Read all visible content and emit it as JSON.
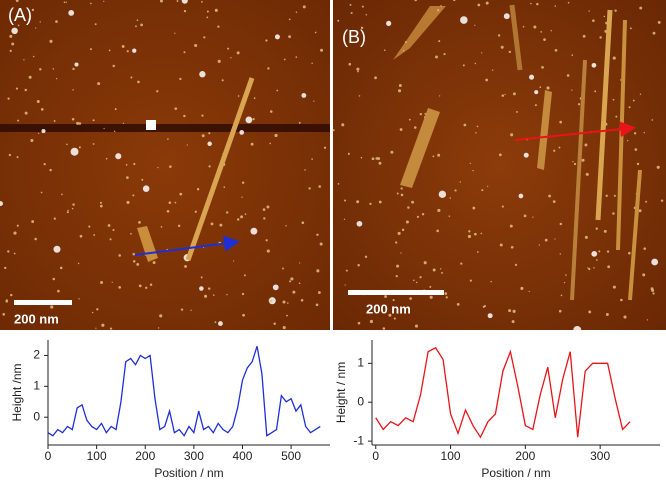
{
  "panels": [
    {
      "label": "(A)",
      "scale_bar": "200 nm"
    },
    {
      "label": "(B)",
      "scale_bar": "200 nm"
    }
  ],
  "chart_data": [
    {
      "type": "line",
      "xlabel": "Position / nm",
      "ylabel": "Height /nm",
      "x": [
        0,
        10,
        20,
        30,
        40,
        50,
        60,
        70,
        80,
        90,
        100,
        110,
        120,
        130,
        140,
        150,
        160,
        170,
        180,
        190,
        200,
        210,
        220,
        230,
        240,
        250,
        260,
        270,
        280,
        290,
        300,
        310,
        320,
        330,
        340,
        350,
        360,
        370,
        380,
        390,
        400,
        410,
        420,
        430,
        440,
        450,
        460,
        470,
        480,
        490,
        500,
        510,
        520,
        530,
        540,
        550,
        560
      ],
      "series": [
        {
          "name": "A",
          "color": "#1f2fd6",
          "values": [
            -0.5,
            -0.6,
            -0.4,
            -0.5,
            -0.3,
            -0.4,
            0.3,
            0.4,
            -0.1,
            -0.3,
            -0.4,
            -0.2,
            -0.5,
            -0.3,
            -0.4,
            0.5,
            1.8,
            1.9,
            1.7,
            2.0,
            1.9,
            2.0,
            0.6,
            -0.4,
            -0.3,
            0.2,
            -0.5,
            -0.4,
            -0.6,
            -0.3,
            -0.5,
            0.2,
            -0.4,
            -0.3,
            -0.5,
            -0.2,
            -0.4,
            -0.5,
            -0.3,
            0.3,
            1.2,
            1.6,
            1.8,
            2.3,
            1.4,
            -0.6,
            -0.5,
            -0.4,
            0.7,
            0.5,
            0.6,
            0.2,
            0.4,
            -0.3,
            -0.5,
            -0.4,
            -0.3
          ]
        }
      ],
      "xlim": [
        0,
        580
      ],
      "ylim": [
        -0.9,
        2.5
      ],
      "xticks": [
        0,
        100,
        200,
        300,
        400,
        500
      ],
      "yticks": [
        0,
        1,
        2
      ]
    },
    {
      "type": "line",
      "xlabel": "Position / nm",
      "ylabel": "Height / nm",
      "x": [
        0,
        10,
        20,
        30,
        40,
        50,
        60,
        70,
        80,
        90,
        100,
        110,
        120,
        130,
        140,
        150,
        160,
        170,
        180,
        190,
        200,
        210,
        220,
        230,
        240,
        250,
        260,
        270,
        280,
        290,
        300,
        310,
        320,
        330,
        340
      ],
      "series": [
        {
          "name": "B",
          "color": "#e8141a",
          "values": [
            -0.4,
            -0.7,
            -0.5,
            -0.6,
            -0.4,
            -0.5,
            0.2,
            1.3,
            1.4,
            1.1,
            -0.3,
            -0.8,
            -0.2,
            -0.6,
            -0.9,
            -0.5,
            -0.3,
            0.8,
            1.3,
            0.4,
            -0.6,
            -0.7,
            0.2,
            0.9,
            -0.4,
            0.6,
            1.3,
            -0.9,
            0.8,
            1.0,
            1.0,
            1.0,
            0.1,
            -0.7,
            -0.5
          ]
        }
      ],
      "xlim": [
        -5,
        380
      ],
      "ylim": [
        -1.1,
        1.6
      ],
      "xticks": [
        0,
        100,
        200,
        300
      ],
      "yticks": [
        -1,
        0,
        1
      ]
    }
  ]
}
